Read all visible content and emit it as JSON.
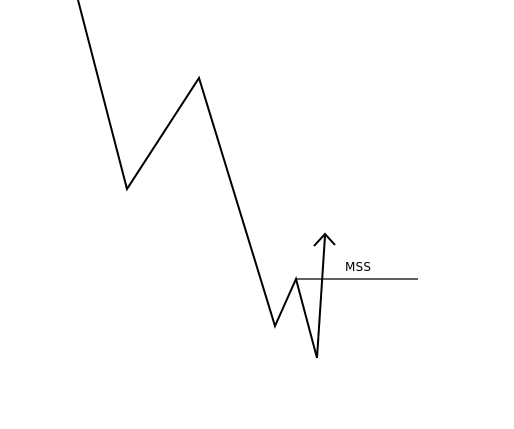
{
  "diagram": {
    "label": "MSS",
    "colors": {
      "background": "#ffffff",
      "line": "#000000"
    }
  }
}
